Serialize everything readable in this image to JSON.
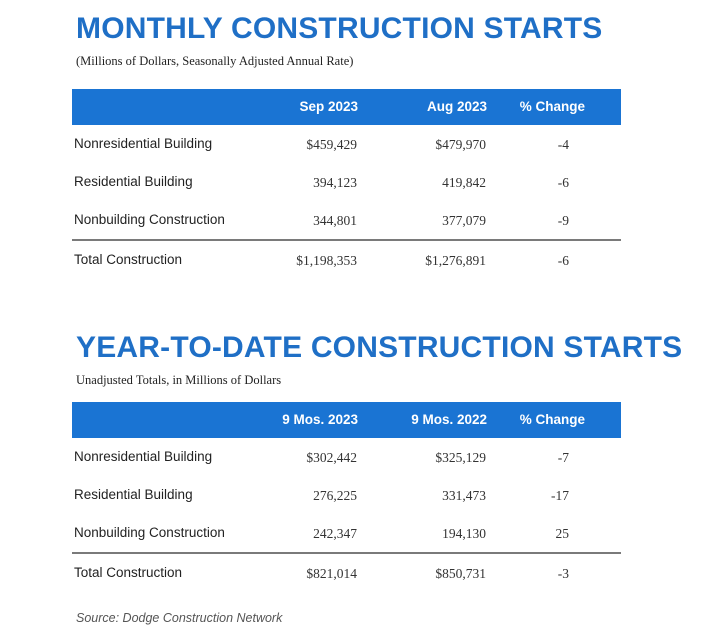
{
  "monthly": {
    "title": "MONTHLY CONSTRUCTION STARTS",
    "subtitle": "(Millions of Dollars, Seasonally Adjusted Annual Rate)",
    "headers": [
      "Sep 2023",
      "Aug 2023",
      "% Change"
    ],
    "rows": [
      {
        "label": "Nonresidential Building",
        "a": "$459,429",
        "b": "$479,970",
        "c": "-4"
      },
      {
        "label": "Residential Building",
        "a": "394,123",
        "b": "419,842",
        "c": "-6"
      },
      {
        "label": "Nonbuilding Construction",
        "a": "344,801",
        "b": "377,079",
        "c": "-9"
      }
    ],
    "total": {
      "label": "Total Construction",
      "a": "$1,198,353",
      "b": "$1,276,891",
      "c": "-6"
    }
  },
  "ytd": {
    "title": "YEAR-TO-DATE CONSTRUCTION STARTS",
    "subtitle": "Unadjusted Totals, in Millions of Dollars",
    "headers": [
      "9 Mos. 2023",
      "9 Mos. 2022",
      "% Change"
    ],
    "rows": [
      {
        "label": "Nonresidential Building",
        "a": "$302,442",
        "b": "$325,129",
        "c": "-7"
      },
      {
        "label": "Residential Building",
        "a": "276,225",
        "b": "331,473",
        "c": "-17"
      },
      {
        "label": "Nonbuilding Construction",
        "a": "242,347",
        "b": "194,130",
        "c": "25"
      }
    ],
    "total": {
      "label": "Total Construction",
      "a": "$821,014",
      "b": "$850,731",
      "c": "-3"
    }
  },
  "source": "Source: Dodge Construction Network"
}
